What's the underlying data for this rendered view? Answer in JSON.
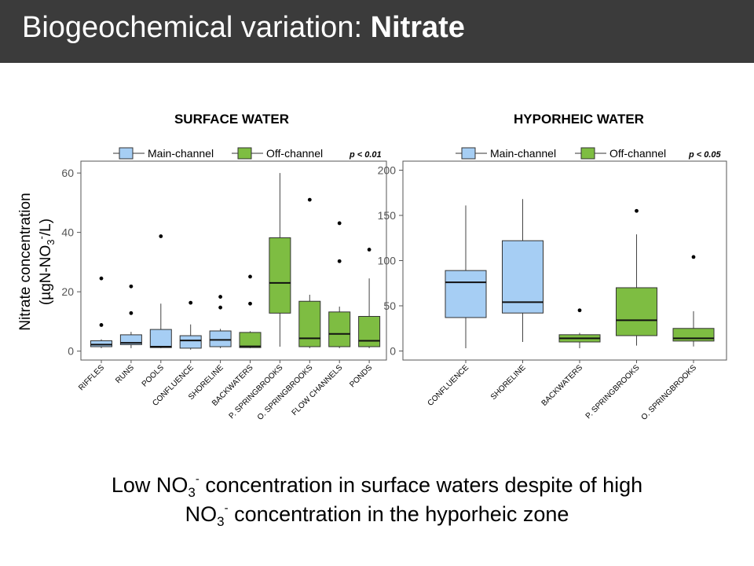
{
  "slide": {
    "title_regular": "Biogeochemical variation: ",
    "title_bold": "Nitrate",
    "caption_line1": {
      "pre": "Low NO",
      "sub": "3",
      "sup": "-",
      "post": " concentration in surface waters despite of high"
    },
    "caption_line2": {
      "pre": "NO",
      "sub": "3",
      "sup": "-",
      "post": " concentration in the hyporheic zone"
    }
  },
  "colors": {
    "main_channel": "#a6cef4",
    "off_channel": "#7ebd42",
    "title_bar": "#3b3b3b"
  },
  "chart_data": [
    {
      "type": "box",
      "panel_label": "SURFACE WATER",
      "ylabel_line1": "Nitrate concentration",
      "ylabel_line2": {
        "pre": "(µgN-NO",
        "sub": "3",
        "sup": "-",
        "post": "/L)"
      },
      "ylim": [
        -3,
        64
      ],
      "yticks": [
        0,
        20,
        40,
        60
      ],
      "legend": {
        "main": "Main-channel",
        "off": "Off-channel",
        "p": "p < 0.01"
      },
      "categories": [
        "RIFFLES",
        "RUNS",
        "POOLS",
        "CONFLUENCE",
        "SHORELINE",
        "BACKWATERS",
        "P. SPRINGBROOKS",
        "O. SPRINGBROOKS",
        "FLOW CHANNELS",
        "PONDS"
      ],
      "groups": [
        "main",
        "main",
        "main",
        "main",
        "main",
        "off",
        "off",
        "off",
        "off",
        "off"
      ],
      "boxes": [
        {
          "min": 1.0,
          "q1": 1.5,
          "median": 2.2,
          "q3": 3.5,
          "max": 4.0,
          "outliers": [
            8.8,
            24.5
          ]
        },
        {
          "min": 1.0,
          "q1": 2.2,
          "median": 2.8,
          "q3": 5.5,
          "max": 6.5,
          "outliers": [
            12.8,
            21.8
          ]
        },
        {
          "min": 1.0,
          "q1": 1.2,
          "median": 1.5,
          "q3": 7.3,
          "max": 16.0,
          "outliers": [
            38.7
          ]
        },
        {
          "min": 0.5,
          "q1": 1.0,
          "median": 3.6,
          "q3": 5.2,
          "max": 9.0,
          "outliers": [
            16.3
          ]
        },
        {
          "min": 1.0,
          "q1": 1.5,
          "median": 3.8,
          "q3": 6.8,
          "max": 7.5,
          "outliers": [
            14.7,
            18.3
          ]
        },
        {
          "min": 1.0,
          "q1": 1.2,
          "median": 1.6,
          "q3": 6.3,
          "max": 6.7,
          "outliers": [
            16.0,
            25.1
          ]
        },
        {
          "min": 1.5,
          "q1": 12.8,
          "median": 23.0,
          "q3": 38.2,
          "max": 60.0,
          "outliers": []
        },
        {
          "min": 1.0,
          "q1": 1.5,
          "median": 4.3,
          "q3": 16.8,
          "max": 19.0,
          "outliers": [
            51.0
          ]
        },
        {
          "min": 1.0,
          "q1": 1.5,
          "median": 5.8,
          "q3": 13.2,
          "max": 15.0,
          "outliers": [
            30.3,
            43.1
          ]
        },
        {
          "min": 1.0,
          "q1": 1.5,
          "median": 3.5,
          "q3": 11.7,
          "max": 24.5,
          "outliers": [
            34.2
          ]
        }
      ]
    },
    {
      "type": "box",
      "panel_label": "HYPORHEIC WATER",
      "ylim": [
        -10,
        210
      ],
      "yticks": [
        0,
        50,
        100,
        150,
        200
      ],
      "legend": {
        "main": "Main-channel",
        "off": "Off-channel",
        "p": "p < 0.05"
      },
      "categories": [
        "CONFLUENCE",
        "SHORELINE",
        "BACKWATERS",
        "P. SPRINGBROOKS",
        "O. SPRINGBROOKS"
      ],
      "groups": [
        "main",
        "main",
        "off",
        "off",
        "off"
      ],
      "boxes": [
        {
          "min": 3,
          "q1": 37,
          "median": 76,
          "q3": 89,
          "max": 161,
          "outliers": []
        },
        {
          "min": 10,
          "q1": 42,
          "median": 54,
          "q3": 122,
          "max": 168,
          "outliers": []
        },
        {
          "min": 3,
          "q1": 10,
          "median": 14,
          "q3": 18,
          "max": 20,
          "outliers": [
            45
          ]
        },
        {
          "min": 6,
          "q1": 17,
          "median": 34,
          "q3": 70,
          "max": 129,
          "outliers": [
            155
          ]
        },
        {
          "min": 5,
          "q1": 11,
          "median": 14,
          "q3": 25,
          "max": 44,
          "outliers": [
            104
          ]
        }
      ]
    }
  ]
}
